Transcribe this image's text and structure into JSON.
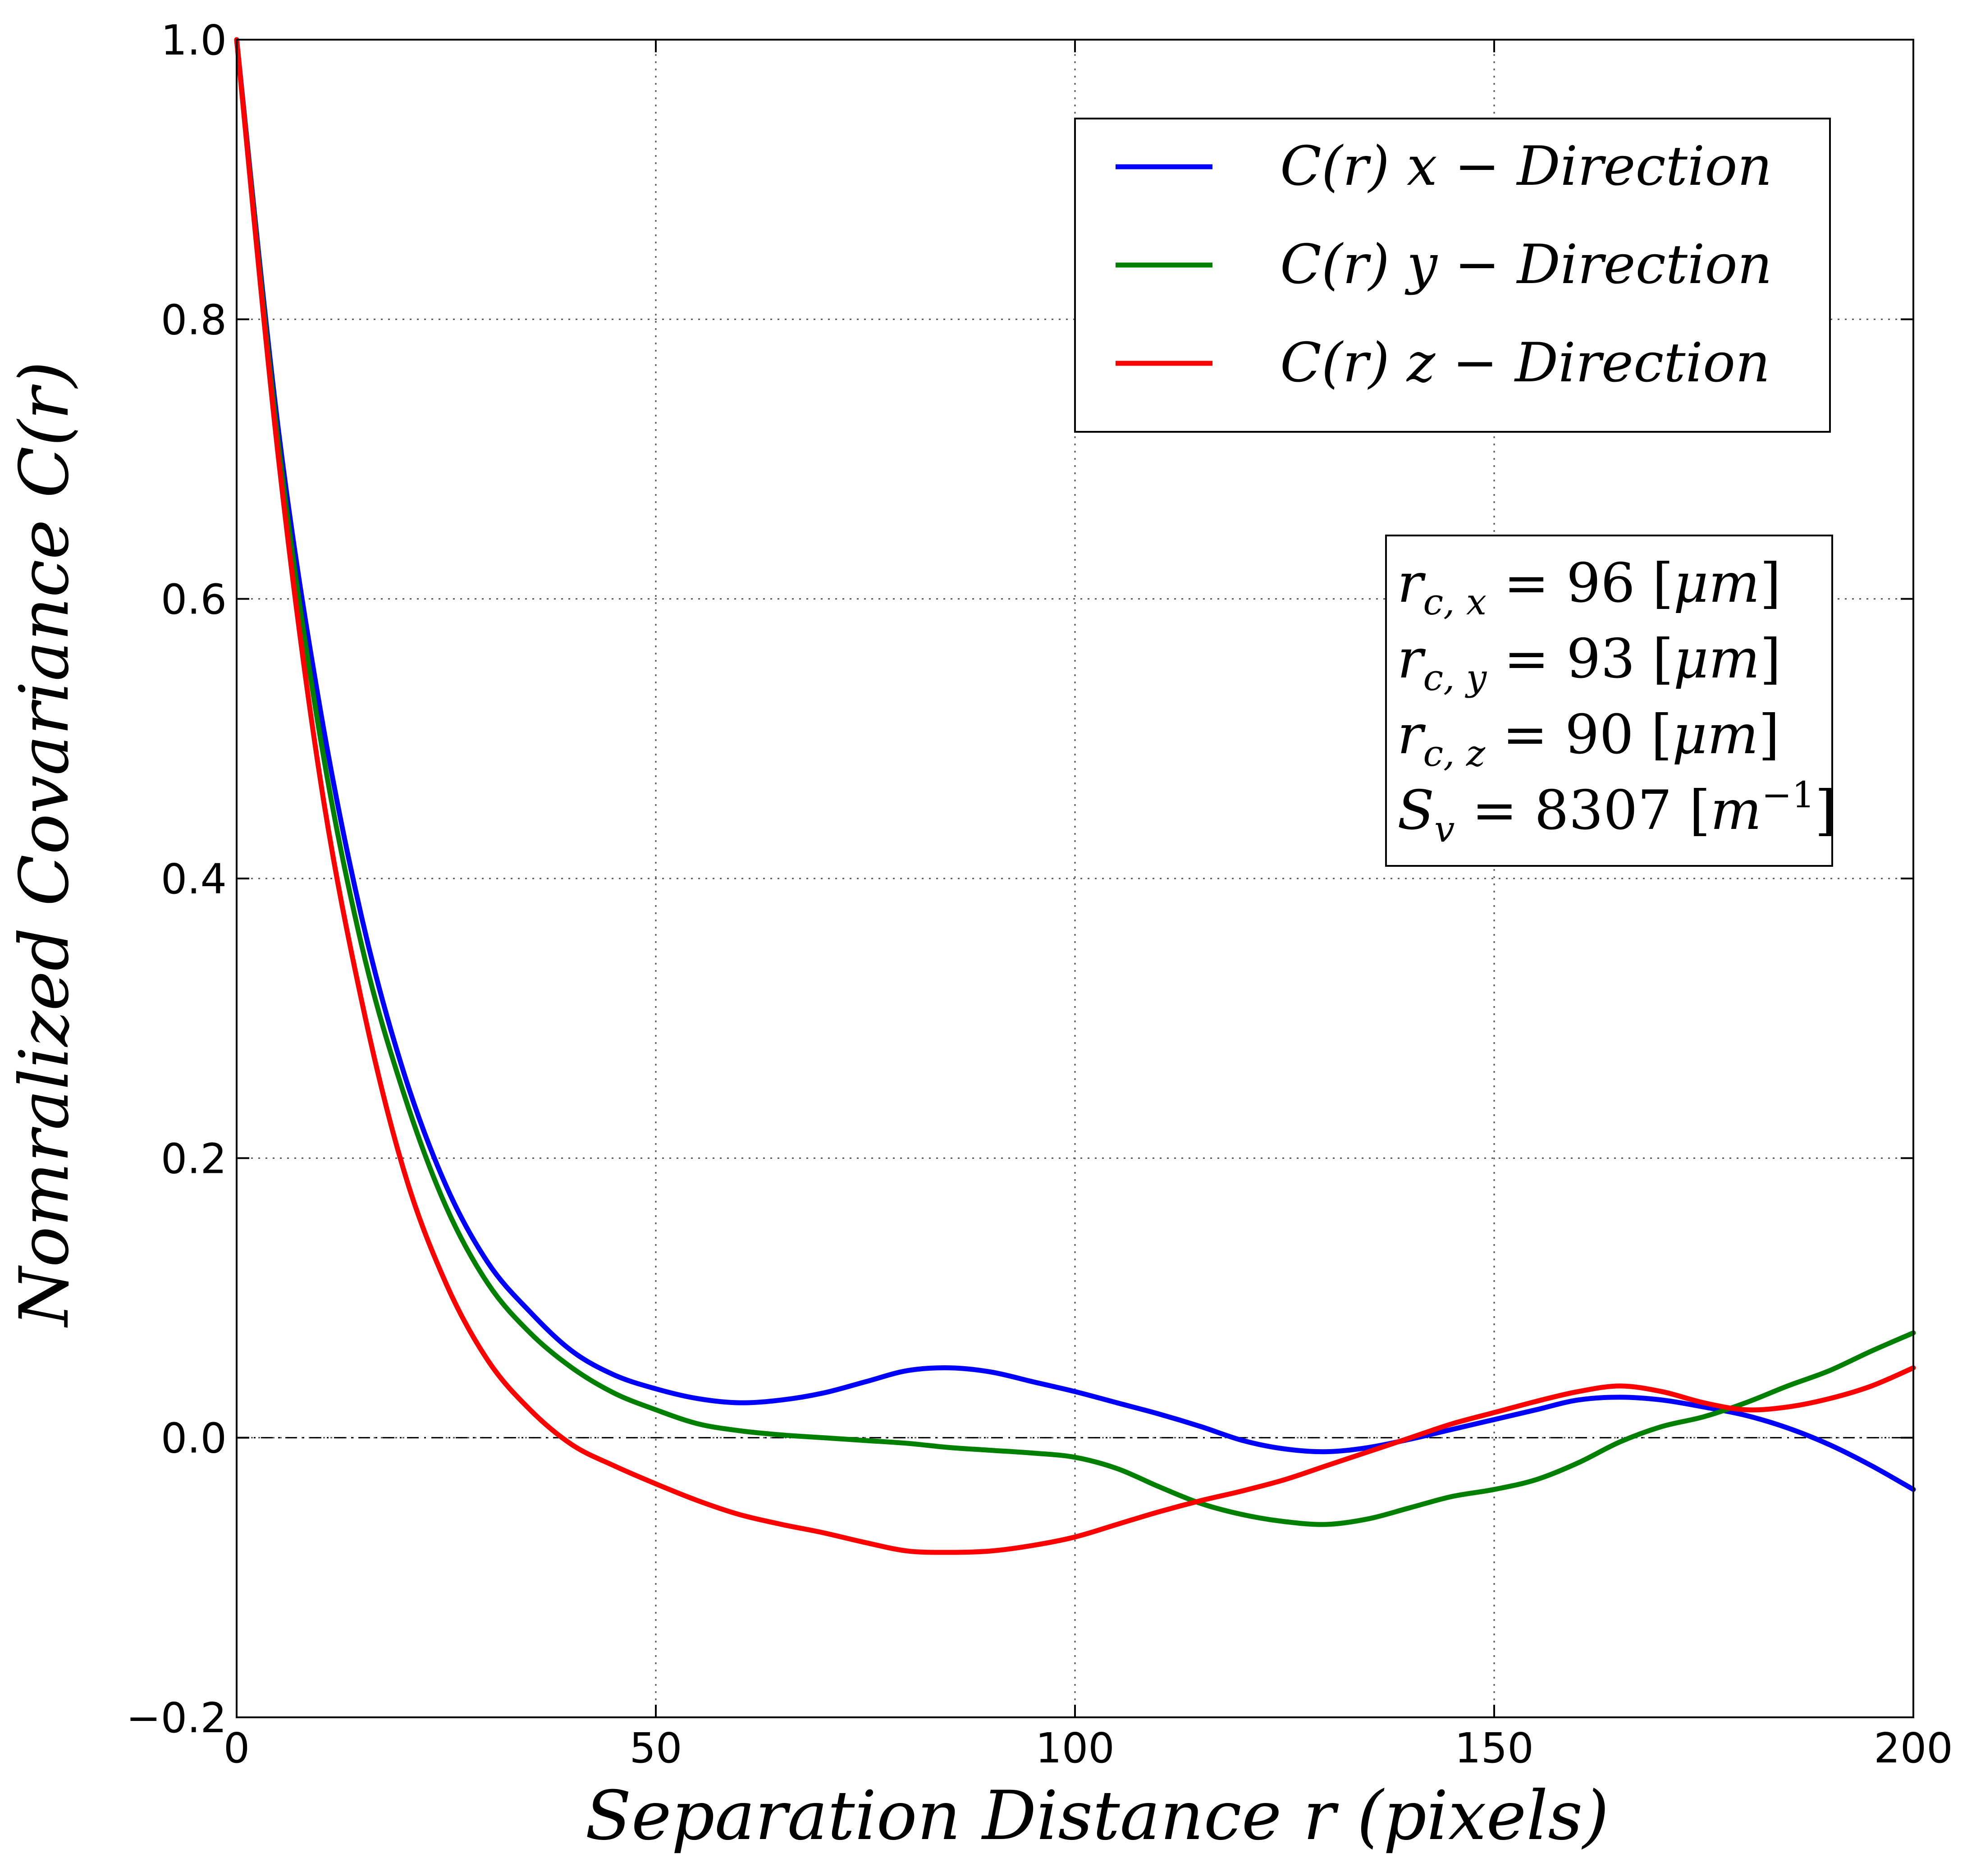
{
  "chart_data": {
    "type": "line",
    "xlabel": "Separation Distance r (pixels)",
    "ylabel": "Nomralized Covariance C(r)",
    "xlim": [
      0,
      200
    ],
    "ylim": [
      -0.2,
      1.0
    ],
    "xticks": [
      "0",
      "50",
      "100",
      "150",
      "200"
    ],
    "yticks": [
      "−0.2",
      "0.0",
      "0.2",
      "0.4",
      "0.6",
      "0.8",
      "1.0"
    ],
    "grid": true,
    "reference_line": {
      "y": 0.0,
      "style": "dash-dot",
      "color": "#000000"
    },
    "legend_position": "top-right",
    "series": [
      {
        "name": "C(r) x−Direction",
        "color": "#0000ff",
        "x": [
          0,
          5,
          10,
          15,
          20,
          25,
          30,
          35,
          40,
          45,
          50,
          55,
          60,
          65,
          70,
          75,
          80,
          85,
          90,
          95,
          100,
          105,
          110,
          115,
          120,
          125,
          130,
          135,
          140,
          145,
          150,
          155,
          160,
          165,
          170,
          175,
          180,
          185,
          190,
          195,
          200
        ],
        "values": [
          1.0,
          0.72,
          0.52,
          0.37,
          0.26,
          0.18,
          0.125,
          0.09,
          0.062,
          0.045,
          0.035,
          0.028,
          0.025,
          0.027,
          0.032,
          0.04,
          0.048,
          0.05,
          0.047,
          0.04,
          0.033,
          0.025,
          0.017,
          0.008,
          -0.002,
          -0.008,
          -0.01,
          -0.007,
          -0.001,
          0.006,
          0.013,
          0.02,
          0.027,
          0.029,
          0.027,
          0.022,
          0.016,
          0.007,
          -0.005,
          -0.02,
          -0.037
        ]
      },
      {
        "name": "C(r) y−Direction",
        "color": "#007f00",
        "x": [
          0,
          5,
          10,
          15,
          20,
          25,
          30,
          35,
          40,
          45,
          50,
          55,
          60,
          65,
          70,
          75,
          80,
          85,
          90,
          95,
          100,
          105,
          110,
          115,
          120,
          125,
          130,
          135,
          140,
          145,
          150,
          155,
          160,
          165,
          170,
          175,
          180,
          185,
          190,
          195,
          200
        ],
        "values": [
          1.0,
          0.71,
          0.5,
          0.35,
          0.245,
          0.165,
          0.11,
          0.075,
          0.05,
          0.032,
          0.02,
          0.01,
          0.005,
          0.002,
          0.0,
          -0.002,
          -0.004,
          -0.007,
          -0.009,
          -0.011,
          -0.014,
          -0.022,
          -0.035,
          -0.047,
          -0.055,
          -0.06,
          -0.062,
          -0.058,
          -0.05,
          -0.042,
          -0.037,
          -0.03,
          -0.018,
          -0.003,
          0.008,
          0.015,
          0.025,
          0.037,
          0.048,
          0.062,
          0.075
        ]
      },
      {
        "name": "C(r) z−Direction",
        "color": "#ff0000",
        "x": [
          0,
          5,
          10,
          15,
          20,
          25,
          30,
          35,
          40,
          45,
          50,
          55,
          60,
          65,
          70,
          75,
          80,
          85,
          90,
          95,
          100,
          105,
          110,
          115,
          120,
          125,
          130,
          135,
          140,
          145,
          150,
          155,
          160,
          165,
          170,
          175,
          180,
          185,
          190,
          195,
          200
        ],
        "values": [
          1.0,
          0.7,
          0.47,
          0.31,
          0.19,
          0.11,
          0.055,
          0.02,
          -0.005,
          -0.02,
          -0.033,
          -0.045,
          -0.055,
          -0.062,
          -0.068,
          -0.075,
          -0.081,
          -0.082,
          -0.081,
          -0.077,
          -0.071,
          -0.062,
          -0.053,
          -0.045,
          -0.038,
          -0.03,
          -0.02,
          -0.01,
          0.0,
          0.01,
          0.018,
          0.026,
          0.033,
          0.037,
          0.033,
          0.025,
          0.02,
          0.022,
          0.028,
          0.037,
          0.05
        ]
      }
    ],
    "annotations": [
      "r_{c,x} = 96 [μm]",
      "r_{c,y} = 93 [μm]",
      "r_{c,z} = 90 [μm]",
      "S_v = 8307 [m^{−1}]"
    ]
  },
  "legend": {
    "items": [
      {
        "fn": "C(r)",
        "var": "x",
        "dir": "Direction"
      },
      {
        "fn": "C(r)",
        "var": "y",
        "dir": "Direction"
      },
      {
        "fn": "C(r)",
        "var": "z",
        "dir": "Direction"
      }
    ]
  },
  "annotation": {
    "lines": [
      {
        "sym": "r",
        "sub": "c, x",
        "value": "96",
        "unit": "μm",
        "sup": ""
      },
      {
        "sym": "r",
        "sub": "c, y",
        "value": "93",
        "unit": "μm",
        "sup": ""
      },
      {
        "sym": "r",
        "sub": "c, z",
        "value": "90",
        "unit": "μm",
        "sup": ""
      },
      {
        "sym": "S",
        "sub": "v",
        "value": "8307",
        "unit": "m",
        "sup": "−1"
      }
    ]
  }
}
